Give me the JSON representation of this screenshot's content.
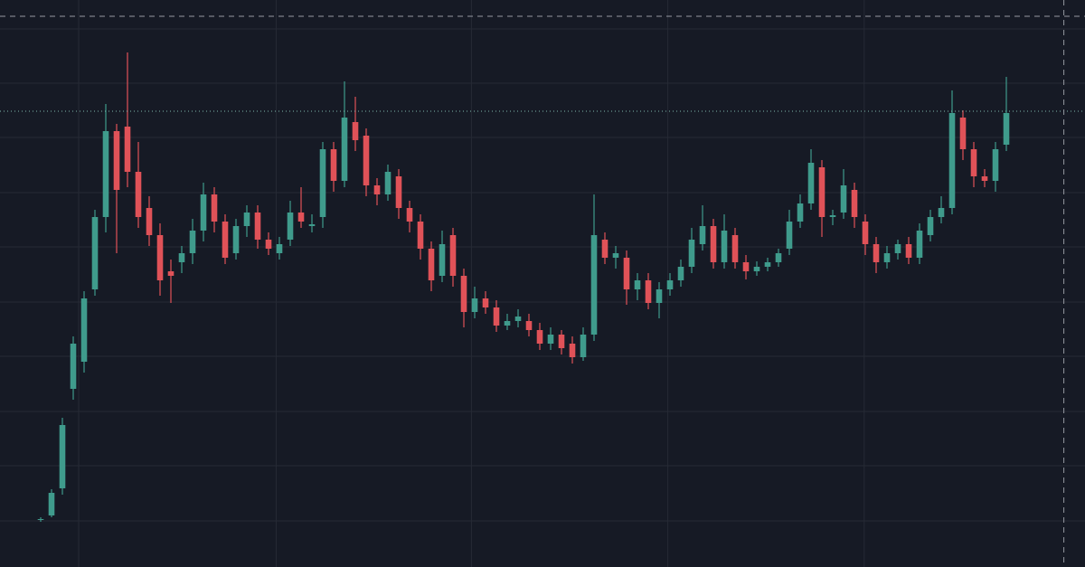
{
  "chart_data": {
    "type": "candlestick",
    "up_color": "#3f9b8c",
    "down_color": "#e05258",
    "background": "#161a25",
    "grid_color": "#262a35",
    "grid": true,
    "x": [
      0,
      1,
      2,
      3,
      4,
      5,
      6,
      7,
      8,
      9,
      10,
      11,
      12,
      13,
      14,
      15,
      16,
      17,
      18,
      19,
      20,
      21,
      22,
      23,
      24,
      25,
      26,
      27,
      28,
      29,
      30,
      31,
      32,
      33,
      34,
      35,
      36,
      37,
      38,
      39,
      40,
      41,
      42,
      43,
      44,
      45,
      46,
      47,
      48,
      49,
      50,
      51,
      52,
      53,
      54,
      55,
      56,
      57,
      58,
      59,
      60,
      61,
      62,
      63,
      64,
      65,
      66,
      67,
      68,
      69,
      70,
      71,
      72,
      73,
      74,
      75,
      76,
      77,
      78,
      79,
      80,
      81,
      82,
      83,
      84,
      85,
      86,
      87,
      88,
      89
    ],
    "open": [
      52,
      57,
      87,
      197,
      227,
      307,
      387,
      482,
      487,
      437,
      397,
      367,
      327,
      337,
      347,
      372,
      412,
      382,
      347,
      377,
      392,
      362,
      347,
      362,
      392,
      377,
      387,
      462,
      427,
      492,
      477,
      422,
      412,
      432,
      397,
      382,
      352,
      322,
      367,
      322,
      282,
      297,
      287,
      267,
      272,
      272,
      262,
      247,
      257,
      247,
      232,
      257,
      362,
      342,
      342,
      307,
      317,
      292,
      307,
      317,
      332,
      357,
      377,
      337,
      367,
      337,
      327,
      332,
      337,
      352,
      382,
      402,
      442,
      387,
      392,
      417,
      382,
      357,
      337,
      347,
      357,
      342,
      367,
      387,
      397,
      497,
      462,
      432,
      427,
      467
    ],
    "high": [
      55,
      86,
      165,
      255,
      305,
      395,
      512,
      490,
      569,
      470,
      410,
      380,
      340,
      355,
      385,
      425,
      420,
      390,
      385,
      400,
      400,
      370,
      365,
      405,
      420,
      390,
      470,
      470,
      537,
      520,
      485,
      430,
      445,
      440,
      405,
      390,
      360,
      372,
      375,
      330,
      310,
      305,
      295,
      280,
      285,
      280,
      270,
      265,
      262,
      255,
      265,
      412,
      370,
      355,
      350,
      325,
      325,
      315,
      325,
      340,
      375,
      400,
      385,
      390,
      375,
      345,
      338,
      342,
      352,
      395,
      412,
      462,
      450,
      395,
      440,
      425,
      390,
      365,
      355,
      362,
      365,
      380,
      395,
      410,
      527,
      505,
      470,
      440,
      470,
      542
    ],
    "low": [
      50,
      55,
      80,
      185,
      215,
      300,
      370,
      347,
      420,
      375,
      355,
      300,
      292,
      325,
      335,
      360,
      370,
      335,
      340,
      365,
      352,
      345,
      340,
      355,
      375,
      370,
      375,
      415,
      420,
      460,
      410,
      400,
      405,
      385,
      370,
      340,
      305,
      315,
      310,
      265,
      275,
      280,
      260,
      262,
      265,
      255,
      240,
      240,
      235,
      225,
      228,
      250,
      335,
      330,
      290,
      295,
      285,
      275,
      300,
      310,
      325,
      350,
      330,
      330,
      330,
      318,
      322,
      327,
      332,
      345,
      375,
      395,
      365,
      378,
      385,
      375,
      345,
      325,
      330,
      340,
      335,
      335,
      360,
      380,
      390,
      450,
      420,
      420,
      415,
      460
    ],
    "close": [
      53,
      82,
      157,
      247,
      297,
      387,
      482,
      417,
      437,
      387,
      367,
      317,
      322,
      347,
      372,
      412,
      382,
      342,
      377,
      392,
      362,
      352,
      357,
      392,
      382,
      379,
      462,
      427,
      497,
      472,
      422,
      412,
      437,
      397,
      382,
      352,
      317,
      357,
      322,
      282,
      297,
      287,
      267,
      272,
      277,
      262,
      247,
      257,
      242,
      232,
      257,
      367,
      342,
      347,
      307,
      317,
      292,
      307,
      317,
      332,
      362,
      377,
      337,
      372,
      337,
      327,
      332,
      337,
      347,
      382,
      402,
      447,
      387,
      389,
      422,
      387,
      357,
      337,
      347,
      357,
      342,
      372,
      387,
      397,
      502,
      462,
      432,
      427,
      462,
      502
    ],
    "xlim": [
      -3.75,
      96.25
    ],
    "ylim": [
      0,
      627
    ],
    "xticks": [
      3.5,
      21.7,
      39.7,
      57.8,
      75.9
    ],
    "yticks": [
      51,
      112,
      172,
      233,
      293,
      354,
      414,
      475,
      535,
      595
    ],
    "price_line": 504,
    "crosshair": {
      "x": 94.3,
      "y": 609
    }
  }
}
